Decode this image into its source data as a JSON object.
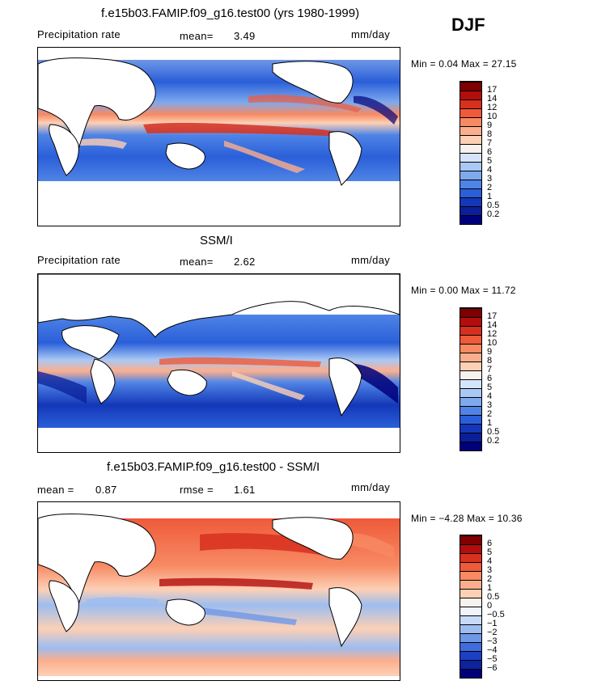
{
  "season": "DJF",
  "panels": [
    {
      "id": "model",
      "title": "f.e15b03.FAMIP.f09_g16.test00 (yrs 1980-1999)",
      "left_label": "Precipitation rate",
      "stat1": "mean=",
      "stat1_value": "3.49",
      "units": "mm/day",
      "minmax": "Min =     0.04  Max =   27.15",
      "colorbar_ticks": [
        "17",
        "14",
        "12",
        "10",
        "9",
        "8",
        "7",
        "6",
        "5",
        "4",
        "3",
        "2",
        "1",
        "0.5",
        "0.2"
      ],
      "colors": [
        "#7f0000",
        "#b30d0d",
        "#d7301f",
        "#ef5a3a",
        "#f78a63",
        "#fbae8d",
        "#fdd0b5",
        "#f7f2ee",
        "#d6e4fb",
        "#aac8f5",
        "#7ea9ee",
        "#4f84e6",
        "#2a5fd9",
        "#1437b8",
        "#0a1f99",
        "#00007a"
      ]
    },
    {
      "id": "obs",
      "title": "SSM/I",
      "left_label": "Precipitation rate",
      "stat1": "mean=",
      "stat1_value": "2.62",
      "units": "mm/day",
      "minmax": "Min =     0.00  Max =   11.72",
      "colorbar_ticks": [
        "17",
        "14",
        "12",
        "10",
        "9",
        "8",
        "7",
        "6",
        "5",
        "4",
        "3",
        "2",
        "1",
        "0.5",
        "0.2"
      ],
      "colors": [
        "#7f0000",
        "#b30d0d",
        "#d7301f",
        "#ef5a3a",
        "#f78a63",
        "#fbae8d",
        "#fdd0b5",
        "#f7f2ee",
        "#d6e4fb",
        "#aac8f5",
        "#7ea9ee",
        "#4f84e6",
        "#2a5fd9",
        "#1437b8",
        "#0a1f99",
        "#00007a"
      ]
    },
    {
      "id": "diff",
      "title": "f.e15b03.FAMIP.f09_g16.test00 - SSM/I",
      "left_label": "mean =",
      "left_value": "0.87",
      "stat1": "rmse =",
      "stat1_value": "1.61",
      "units": "mm/day",
      "minmax": "Min =   −4.28  Max =   10.36",
      "colorbar_ticks": [
        "6",
        "5",
        "4",
        "3",
        "2",
        "1",
        "0.5",
        "0",
        "−0.5",
        "−1",
        "−2",
        "−3",
        "−4",
        "−5",
        "−6"
      ],
      "colors": [
        "#7f0000",
        "#b30d0d",
        "#d7301f",
        "#ef5a3a",
        "#f78a63",
        "#fbae8d",
        "#fdd0b5",
        "#f7f2ee",
        "#eef3fc",
        "#c7dbf7",
        "#9dbdf0",
        "#6f97e6",
        "#3f6ddb",
        "#1d3fc2",
        "#0c229f",
        "#00007a"
      ]
    }
  ]
}
